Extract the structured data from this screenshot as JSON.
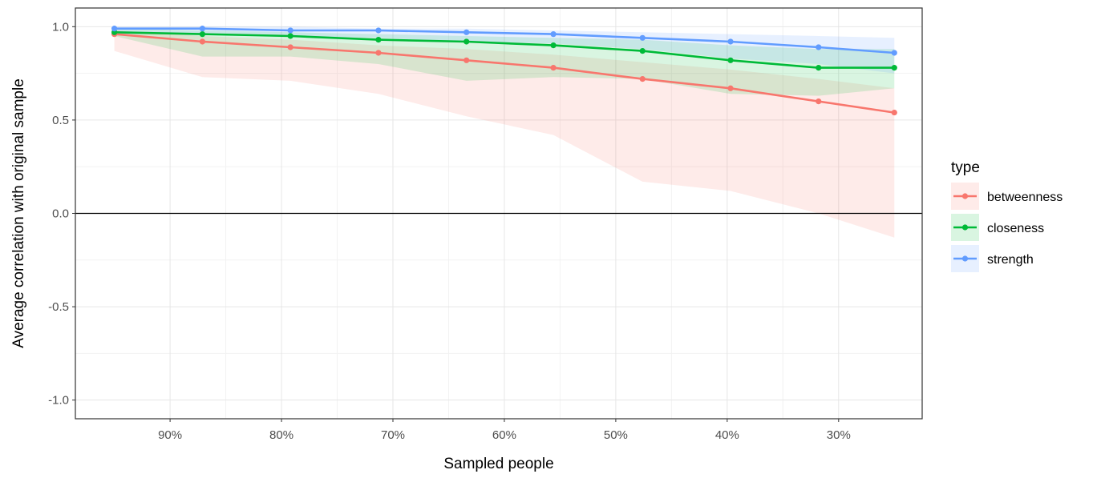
{
  "chart_data": {
    "type": "line",
    "xlabel": "Sampled people",
    "ylabel": "Average correlation with original sample",
    "x_reversed": true,
    "xlim": [
      0.225,
      0.985
    ],
    "ylim": [
      -1.1,
      1.1
    ],
    "x_ticks": [
      {
        "value": 0.9,
        "label": "90%"
      },
      {
        "value": 0.8,
        "label": "80%"
      },
      {
        "value": 0.7,
        "label": "70%"
      },
      {
        "value": 0.6,
        "label": "60%"
      },
      {
        "value": 0.5,
        "label": "50%"
      },
      {
        "value": 0.4,
        "label": "40%"
      },
      {
        "value": 0.3,
        "label": "30%"
      }
    ],
    "y_ticks": [
      {
        "value": 1.0,
        "label": "1.0"
      },
      {
        "value": 0.5,
        "label": "0.5"
      },
      {
        "value": 0.0,
        "label": "0.0"
      },
      {
        "value": -0.5,
        "label": "-0.5"
      },
      {
        "value": -1.0,
        "label": "-1.0"
      }
    ],
    "x": [
      0.95,
      0.871,
      0.792,
      0.713,
      0.634,
      0.556,
      0.476,
      0.397,
      0.318,
      0.25
    ],
    "series": [
      {
        "name": "betweenness",
        "color": "#F8766D",
        "values": [
          0.96,
          0.92,
          0.89,
          0.86,
          0.82,
          0.78,
          0.72,
          0.67,
          0.6,
          0.54
        ],
        "lower": [
          0.87,
          0.73,
          0.71,
          0.64,
          0.52,
          0.42,
          0.17,
          0.12,
          0.0,
          -0.13
        ],
        "upper": [
          0.98,
          0.95,
          0.93,
          0.9,
          0.88,
          0.85,
          0.81,
          0.77,
          0.72,
          0.67
        ]
      },
      {
        "name": "closeness",
        "color": "#00BA38",
        "values": [
          0.97,
          0.96,
          0.95,
          0.93,
          0.92,
          0.9,
          0.87,
          0.82,
          0.78,
          0.78
        ],
        "lower": [
          0.95,
          0.84,
          0.84,
          0.8,
          0.71,
          0.73,
          0.72,
          0.64,
          0.63,
          0.67
        ],
        "upper": [
          0.99,
          0.98,
          0.97,
          0.96,
          0.95,
          0.94,
          0.93,
          0.9,
          0.88,
          0.88
        ]
      },
      {
        "name": "strength",
        "color": "#619CFF",
        "values": [
          0.99,
          0.99,
          0.98,
          0.98,
          0.97,
          0.96,
          0.94,
          0.92,
          0.89,
          0.86
        ],
        "lower": [
          0.96,
          0.96,
          0.95,
          0.94,
          0.92,
          0.91,
          0.88,
          0.83,
          0.8,
          0.75
        ],
        "upper": [
          1.0,
          1.0,
          1.0,
          0.99,
          0.99,
          0.98,
          0.97,
          0.96,
          0.95,
          0.94
        ]
      }
    ],
    "reference_line": 0.0,
    "grid": true,
    "legend": {
      "title": "type",
      "position": "right"
    }
  }
}
